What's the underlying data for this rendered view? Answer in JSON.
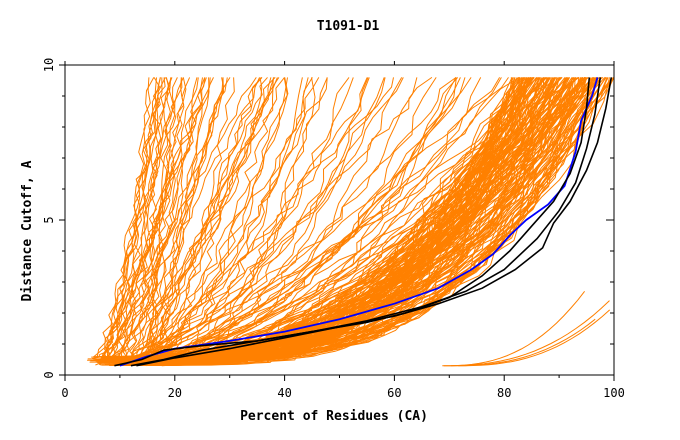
{
  "chart_data": {
    "type": "line",
    "title": "T1091-D1",
    "xlabel": "Percent of Residues (CA)",
    "ylabel": "Distance Cutoff, A",
    "xlim": [
      0,
      100
    ],
    "ylim": [
      0,
      10
    ],
    "x_ticks": [
      "0",
      "20",
      "40",
      "60",
      "80",
      "100"
    ],
    "y_ticks": [
      "0",
      "5",
      "10"
    ],
    "grid": false,
    "colors": {
      "models": "#ff8000",
      "highlight": "#0000ff",
      "reference": "#000000",
      "axes": "#000000"
    },
    "series": [
      {
        "color": "#0000ff",
        "points": [
          [
            10,
            0.3
          ],
          [
            15,
            0.6
          ],
          [
            20,
            0.85
          ],
          [
            30,
            1.1
          ],
          [
            40,
            1.4
          ],
          [
            50,
            1.8
          ],
          [
            60,
            2.3
          ],
          [
            68,
            2.8
          ],
          [
            74,
            3.4
          ],
          [
            78,
            3.9
          ],
          [
            81,
            4.5
          ],
          [
            84,
            5.0
          ],
          [
            88,
            5.5
          ],
          [
            91,
            6.1
          ],
          [
            93,
            7.2
          ],
          [
            94,
            8.2
          ],
          [
            96,
            9.0
          ],
          [
            97,
            9.6
          ]
        ]
      },
      {
        "color": "#000000",
        "points": [
          [
            9,
            0.3
          ],
          [
            14,
            0.5
          ],
          [
            18,
            0.8
          ],
          [
            25,
            0.95
          ],
          [
            35,
            1.1
          ],
          [
            45,
            1.4
          ],
          [
            55,
            1.7
          ],
          [
            62,
            2.0
          ],
          [
            70,
            2.5
          ],
          [
            76,
            3.2
          ],
          [
            81,
            4.0
          ],
          [
            85,
            4.8
          ],
          [
            89,
            5.6
          ],
          [
            92,
            6.5
          ],
          [
            94,
            7.5
          ],
          [
            95,
            8.6
          ],
          [
            95.5,
            9.6
          ]
        ]
      },
      {
        "color": "#000000",
        "points": [
          [
            12,
            0.3
          ],
          [
            18,
            0.5
          ],
          [
            25,
            0.8
          ],
          [
            35,
            1.1
          ],
          [
            45,
            1.4
          ],
          [
            55,
            1.75
          ],
          [
            65,
            2.2
          ],
          [
            73,
            2.7
          ],
          [
            80,
            3.4
          ],
          [
            86,
            4.4
          ],
          [
            90,
            5.3
          ],
          [
            93,
            6.2
          ],
          [
            95,
            7.3
          ],
          [
            96.5,
            8.4
          ],
          [
            97.5,
            9.6
          ]
        ]
      },
      {
        "color": "#000000",
        "points": [
          [
            13,
            0.3
          ],
          [
            20,
            0.55
          ],
          [
            30,
            0.85
          ],
          [
            40,
            1.2
          ],
          [
            50,
            1.55
          ],
          [
            60,
            1.9
          ],
          [
            68,
            2.3
          ],
          [
            76,
            2.8
          ],
          [
            82,
            3.4
          ],
          [
            87,
            4.1
          ],
          [
            89,
            4.9
          ],
          [
            92,
            5.6
          ],
          [
            95,
            6.6
          ],
          [
            97,
            7.5
          ],
          [
            98.5,
            8.6
          ],
          [
            99.5,
            9.6
          ]
        ]
      }
    ]
  }
}
